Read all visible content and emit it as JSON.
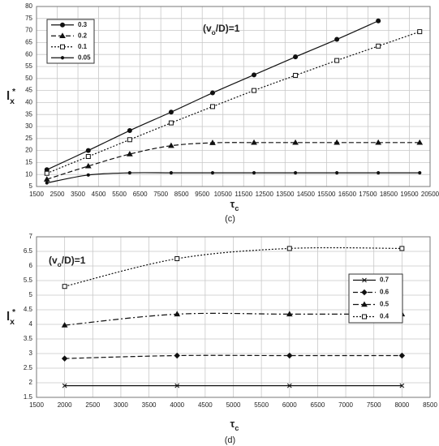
{
  "chart_data": [
    {
      "type": "line",
      "caption": "(c)",
      "annotation": {
        "text": "(v",
        "sub": "o",
        "suffix": "/D)=1"
      },
      "x_label": {
        "text": "τ",
        "sub": "c"
      },
      "y_label": {
        "text": "l",
        "sub": "x",
        "sup": "*"
      },
      "xlim": [
        1500,
        20500
      ],
      "xticks": [
        1500,
        2500,
        3500,
        4500,
        5500,
        6500,
        7500,
        8500,
        9500,
        10500,
        11500,
        12500,
        13500,
        14500,
        15500,
        16500,
        17500,
        18500,
        19500,
        20500
      ],
      "ylim": [
        5,
        80
      ],
      "yticks": [
        5,
        10,
        15,
        20,
        25,
        30,
        35,
        40,
        45,
        50,
        55,
        60,
        65,
        70,
        75,
        80
      ],
      "grid": true,
      "legend": "upper left",
      "series": [
        {
          "name": "0.3",
          "color": "#111111",
          "line_style": "solid",
          "marker": "circle",
          "x": [
            2000,
            4000,
            6000,
            8000,
            10000,
            12000,
            14000,
            16000,
            18000
          ],
          "values": [
            12,
            20,
            28.3,
            36,
            44,
            51.5,
            59,
            66.3,
            74
          ]
        },
        {
          "name": "0.2",
          "color": "#111111",
          "line_style": "dashed",
          "marker": "triangle",
          "x": [
            2000,
            4000,
            6000,
            8000,
            10000,
            12000,
            14000,
            16000,
            18000,
            20000
          ],
          "values": [
            8,
            13.5,
            18.5,
            22,
            23.2,
            23.3,
            23.3,
            23.3,
            23.3,
            23.3
          ]
        },
        {
          "name": "0.1",
          "color": "#111111",
          "line_style": "dotted",
          "marker": "open-square",
          "x": [
            2000,
            4000,
            6000,
            8000,
            10000,
            12000,
            14000,
            16000,
            18000,
            20000
          ],
          "values": [
            10.5,
            17.5,
            24.5,
            31.5,
            38.3,
            45,
            51.3,
            57.5,
            63.5,
            69.5
          ]
        },
        {
          "name": "0.05",
          "color": "#111111",
          "line_style": "solid",
          "marker": "dot",
          "x": [
            2000,
            4000,
            6000,
            8000,
            10000,
            12000,
            14000,
            16000,
            18000,
            20000
          ],
          "values": [
            6.5,
            9.8,
            10.7,
            10.7,
            10.7,
            10.7,
            10.7,
            10.7,
            10.7,
            10.7
          ]
        }
      ]
    },
    {
      "type": "line",
      "caption": "(d)",
      "annotation": {
        "text": "(v",
        "sub": "o",
        "suffix": "/D)=1"
      },
      "x_label": {
        "text": "τ",
        "sub": "c"
      },
      "y_label": {
        "text": "l",
        "sub": "x",
        "sup": "*"
      },
      "xlim": [
        1500,
        8500
      ],
      "xticks": [
        1500,
        2000,
        2500,
        3000,
        3500,
        4000,
        4500,
        5000,
        5500,
        6000,
        6500,
        7000,
        7500,
        8000,
        8500
      ],
      "ylim": [
        1.5,
        7
      ],
      "yticks": [
        1.5,
        2,
        2.5,
        3,
        3.5,
        4,
        4.5,
        5,
        5.5,
        6,
        6.5,
        7
      ],
      "grid": true,
      "legend": "upper right",
      "series": [
        {
          "name": "0.7",
          "color": "#111111",
          "line_style": "solid",
          "marker": "cross",
          "x": [
            2000,
            4000,
            6000,
            8000
          ],
          "values": [
            1.9,
            1.9,
            1.9,
            1.9
          ]
        },
        {
          "name": "0.6",
          "color": "#111111",
          "line_style": "dashed",
          "marker": "diamond",
          "x": [
            2000,
            4000,
            6000,
            8000
          ],
          "values": [
            2.83,
            2.93,
            2.93,
            2.93
          ]
        },
        {
          "name": "0.5",
          "color": "#111111",
          "line_style": "dashdot",
          "marker": "triangle",
          "x": [
            2000,
            4000,
            6000,
            8000
          ],
          "values": [
            3.97,
            4.35,
            4.35,
            4.35
          ]
        },
        {
          "name": "0.4",
          "color": "#111111",
          "line_style": "dotted",
          "marker": "open-square",
          "x": [
            2000,
            4000,
            6000,
            8000
          ],
          "values": [
            5.3,
            6.25,
            6.6,
            6.6
          ]
        }
      ]
    }
  ]
}
